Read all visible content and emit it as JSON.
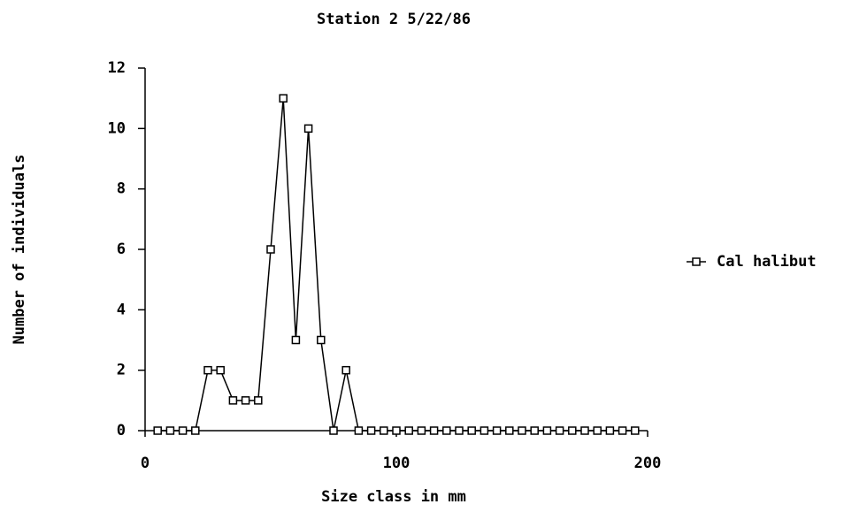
{
  "chart_data": {
    "type": "line",
    "title": "Station 2  5/22/86",
    "x_label": "Size class in mm",
    "y_label": "Number of individuals",
    "x": [
      5,
      10,
      15,
      20,
      25,
      30,
      35,
      40,
      45,
      50,
      55,
      60,
      65,
      70,
      75,
      80,
      85,
      90,
      95,
      100,
      105,
      110,
      115,
      120,
      125,
      130,
      135,
      140,
      145,
      150,
      155,
      160,
      165,
      170,
      175,
      180,
      185,
      190,
      195
    ],
    "series": [
      {
        "name": "Cal halibut",
        "color": "#000000",
        "values": [
          0,
          0,
          0,
          0,
          2,
          2,
          1,
          1,
          1,
          6,
          11,
          3,
          10,
          3,
          0,
          2,
          0,
          0,
          0,
          0,
          0,
          0,
          0,
          0,
          0,
          0,
          0,
          0,
          0,
          0,
          0,
          0,
          0,
          0,
          0,
          0,
          0,
          0,
          0
        ]
      }
    ],
    "xlim": [
      0,
      200
    ],
    "xticks": [
      0,
      100,
      200
    ],
    "ylim": [
      0,
      12
    ],
    "yticks": [
      0,
      2,
      4,
      6,
      8,
      10,
      12
    ],
    "legend": "right"
  }
}
